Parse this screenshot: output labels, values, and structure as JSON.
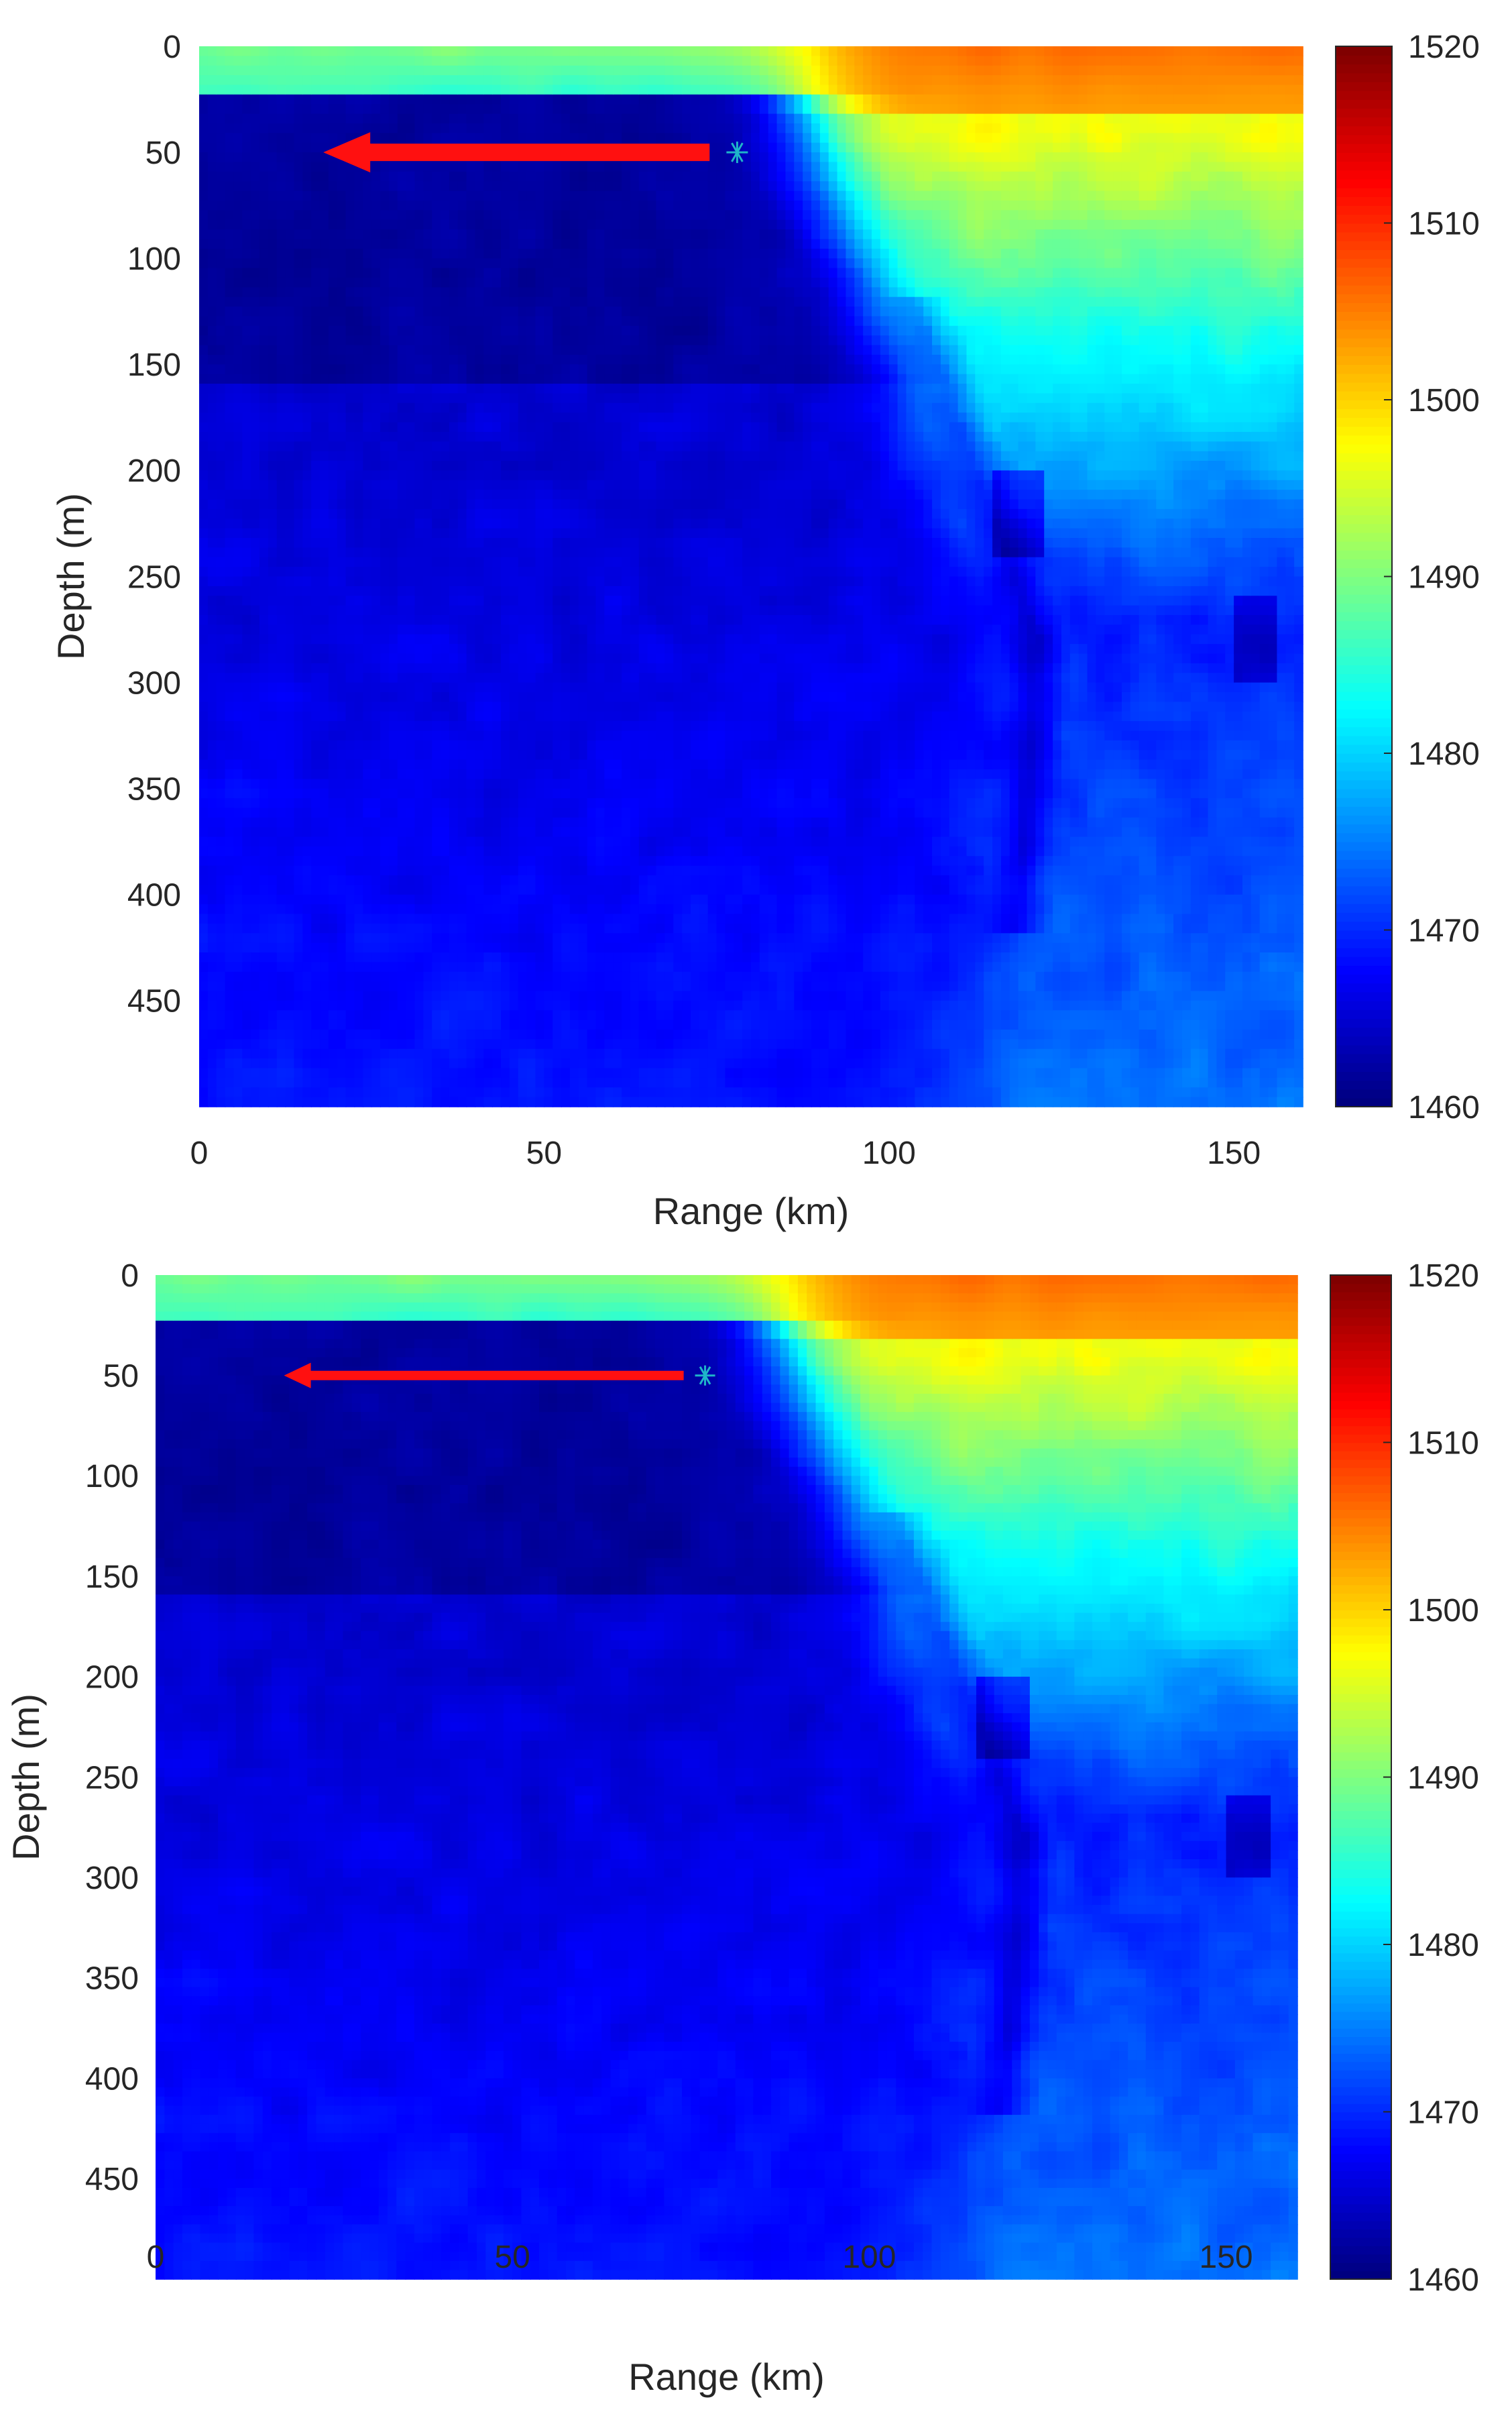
{
  "chart_data": [
    {
      "type": "heatmap",
      "title": "",
      "xlabel": "Range (km)",
      "ylabel": "Depth (m)",
      "xlim": [
        0,
        160
      ],
      "ylim": [
        500,
        0
      ],
      "xticks": [
        0,
        50,
        100,
        150
      ],
      "yticks": [
        0,
        50,
        100,
        150,
        200,
        250,
        300,
        350,
        400,
        450
      ],
      "colorbar": {
        "ticks": [
          1460,
          1470,
          1480,
          1490,
          1500,
          1510,
          1520
        ],
        "clim": [
          1460,
          1520
        ],
        "colormap": "jet"
      },
      "marker": {
        "symbol": "*",
        "x": 78,
        "y": 50,
        "color": "#1fb5c9"
      },
      "arrow": {
        "x_start": 74,
        "x_end": 18,
        "y": 50,
        "color": "#ff1010",
        "weight": "thick"
      }
    },
    {
      "type": "heatmap",
      "title": "",
      "xlabel": "Range (km)",
      "ylabel": "Depth (m)",
      "xlim": [
        0,
        160
      ],
      "ylim": [
        500,
        0
      ],
      "xticks": [
        0,
        50,
        100,
        150
      ],
      "yticks": [
        0,
        50,
        100,
        150,
        200,
        250,
        300,
        350,
        400,
        450
      ],
      "colorbar": {
        "ticks": [
          1460,
          1470,
          1480,
          1490,
          1500,
          1510,
          1520
        ],
        "clim": [
          1460,
          1520
        ],
        "colormap": "jet"
      },
      "marker": {
        "symbol": "*",
        "x": 77,
        "y": 50,
        "color": "#1fb5c9"
      },
      "arrow": {
        "x_start": 74,
        "x_end": 18,
        "y": 50,
        "color": "#ff1010",
        "weight": "thin"
      }
    }
  ]
}
